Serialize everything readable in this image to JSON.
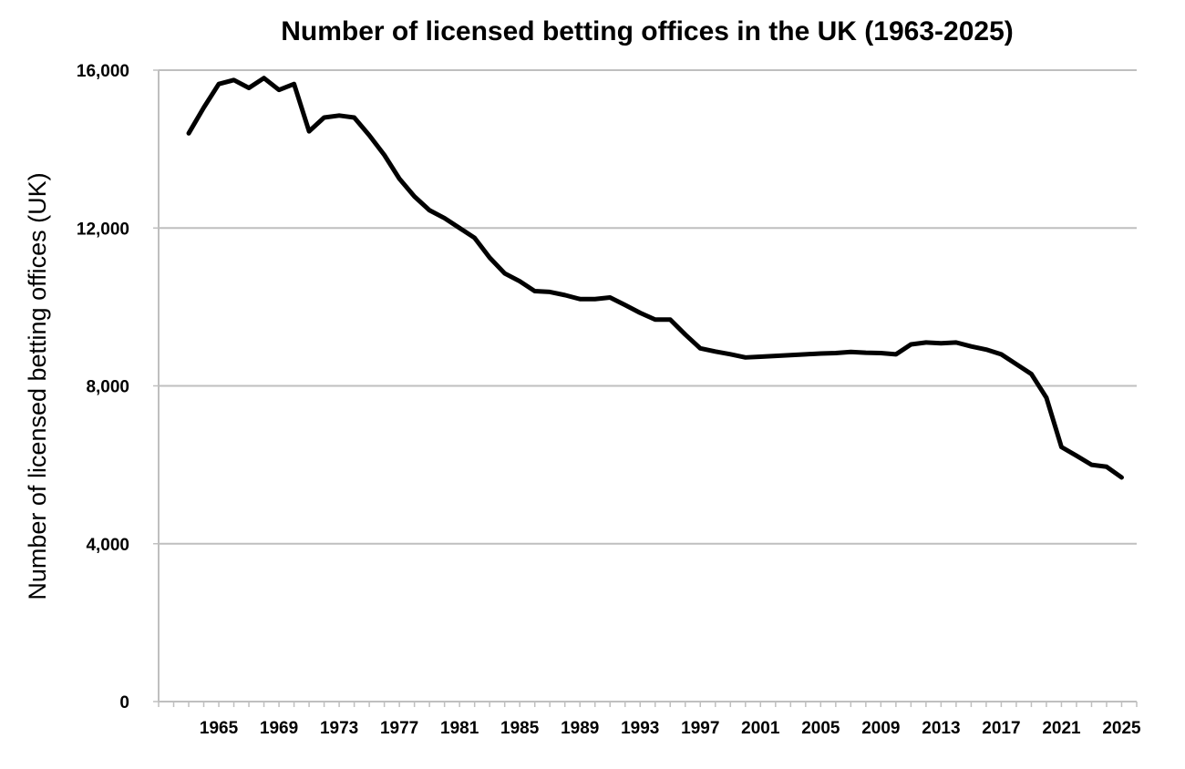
{
  "chart_data": {
    "type": "line",
    "title": "Number of licensed betting offices in the UK (1963-2025)",
    "xlabel": "",
    "ylabel": "Number of licensed betting offices (UK)",
    "ylim": [
      0,
      16000
    ],
    "xlim": [
      1961,
      2026
    ],
    "yticks": [
      {
        "value": 0,
        "label": "0"
      },
      {
        "value": 4000,
        "label": "4,000"
      },
      {
        "value": 8000,
        "label": "8,000"
      },
      {
        "value": 12000,
        "label": "12,000"
      },
      {
        "value": 16000,
        "label": "16,000"
      }
    ],
    "xtick_labels": [
      "1965",
      "1969",
      "1973",
      "1977",
      "1981",
      "1985",
      "1989",
      "1993",
      "1997",
      "2001",
      "2005",
      "2009",
      "2013",
      "2017",
      "2021",
      "2025"
    ],
    "grid": "horizontal",
    "colors": {
      "line": "#000000",
      "grid": "#bfbfbf"
    },
    "series": [
      {
        "x": [
          1963,
          1964,
          1965,
          1966,
          1967,
          1968,
          1969,
          1970,
          1971,
          1972,
          1973,
          1974,
          1975,
          1976,
          1977,
          1978,
          1979,
          1980,
          1981,
          1982,
          1983,
          1984,
          1985,
          1986,
          1987,
          1988,
          1989,
          1990,
          1991,
          1992,
          1993,
          1994,
          1995,
          1996,
          1997,
          1998,
          1999,
          2000,
          2001,
          2002,
          2003,
          2004,
          2005,
          2006,
          2007,
          2008,
          2009,
          2010,
          2011,
          2012,
          2013,
          2014,
          2015,
          2016,
          2017,
          2018,
          2019,
          2020,
          2021,
          2022,
          2023,
          2024,
          2025
        ],
        "values": [
          14400,
          15050,
          15650,
          15750,
          15550,
          15800,
          15500,
          15650,
          14450,
          14800,
          14850,
          14800,
          14350,
          13850,
          13250,
          12800,
          12450,
          12250,
          12000,
          11750,
          11250,
          10850,
          10650,
          10400,
          10380,
          10300,
          10200,
          10200,
          10240,
          10050,
          9850,
          9680,
          9680,
          9300,
          8950,
          8870,
          8800,
          8720,
          8740,
          8760,
          8780,
          8800,
          8820,
          8830,
          8860,
          8840,
          8830,
          8800,
          9050,
          9100,
          9080,
          9100,
          9000,
          8920,
          8800,
          8550,
          8300,
          7700,
          6450,
          6230,
          6000,
          5950,
          5680
        ]
      }
    ]
  }
}
